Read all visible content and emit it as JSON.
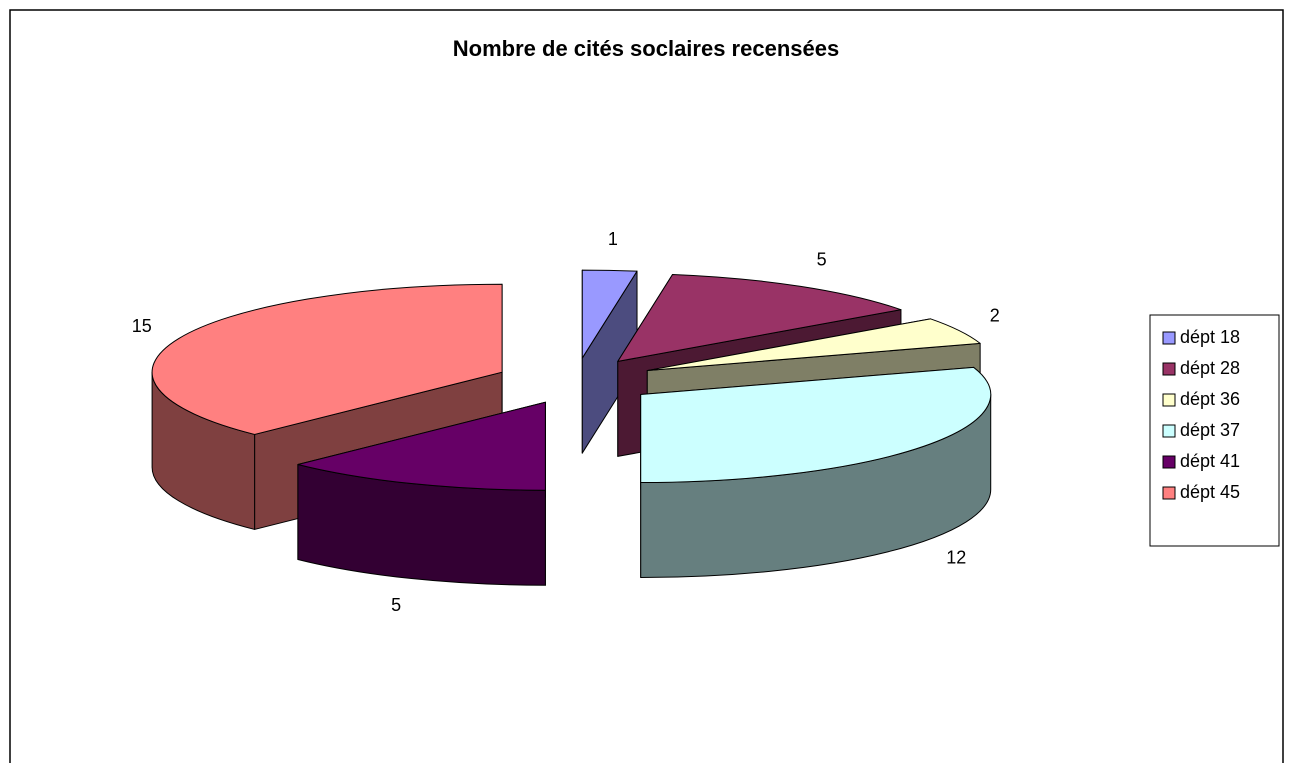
{
  "chart_data": {
    "type": "pie3d",
    "title": "Nombre de cités soclaires recensées",
    "categories": [
      "dépt 18",
      "dépt 28",
      "dépt 36",
      "dépt 37",
      "dépt 41",
      "dépt 45"
    ],
    "values": [
      1,
      5,
      2,
      12,
      5,
      15
    ],
    "colors": [
      "#9999ff",
      "#993366",
      "#ffffcc",
      "#ccffff",
      "#660066",
      "#ff8080"
    ],
    "legend": "right"
  }
}
